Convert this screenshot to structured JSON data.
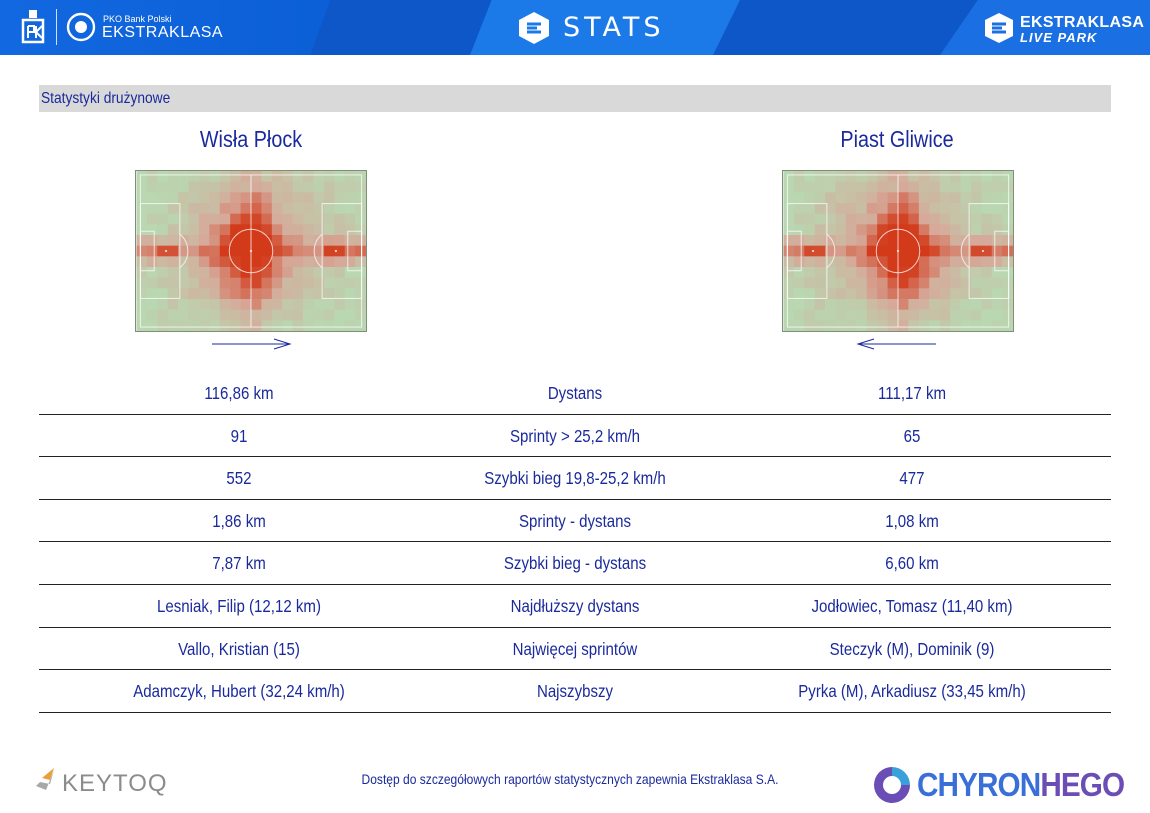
{
  "header": {
    "pko_small": "PKO Bank Polski",
    "pko_big": "EKSTRAKLASA",
    "stats_title": "STATS",
    "live_line1": "EKSTRAKLASA",
    "live_line2": "LIVE PARK",
    "colors": {
      "band": "#0d57c9",
      "accent": "#1c7ae8"
    },
    "icons": [
      "pko-logo-icon",
      "ekstraklasa-logo-icon",
      "stats-logo-icon",
      "live-park-logo-icon"
    ]
  },
  "section_title": "Statystyki drużynowe",
  "teams": {
    "home": {
      "name": "Wisła Płock",
      "direction": "right"
    },
    "away": {
      "name": "Piast Gliwice",
      "direction": "left"
    }
  },
  "heatmap_colors": {
    "low": "#b9d7b1",
    "mid": "#d6a99a",
    "high": "#d23a1a"
  },
  "stats": [
    {
      "home": "116,86 km",
      "label": "Dystans",
      "away": "111,17 km"
    },
    {
      "home": "91",
      "label": "Sprinty > 25,2 km/h",
      "away": "65"
    },
    {
      "home": "552",
      "label": "Szybki bieg 19,8-25,2 km/h",
      "away": "477"
    },
    {
      "home": "1,86 km",
      "label": "Sprinty - dystans",
      "away": "1,08 km"
    },
    {
      "home": "7,87 km",
      "label": "Szybki bieg - dystans",
      "away": "6,60 km"
    },
    {
      "home": "Lesniak, Filip (12,12 km)",
      "label": "Najdłuższy dystans",
      "away": "Jodłowiec, Tomasz (11,40 km)"
    },
    {
      "home": "Vallo, Kristian (15)",
      "label": "Najwięcej sprintów",
      "away": "Steczyk (M), Dominik (9)"
    },
    {
      "home": "Adamczyk, Hubert (32,24 km/h)",
      "label": "Najszybszy",
      "away": "Pyrka (M), Arkadiusz (33,45 km/h)"
    }
  ],
  "footer": {
    "note": "Dostęp do szczegółowych raportów statystycznych zapewnia Ekstraklasa S.A.",
    "keytoq": "KEYTOQ",
    "chyron_a": "CHYRON",
    "chyron_b": "HEGO"
  }
}
